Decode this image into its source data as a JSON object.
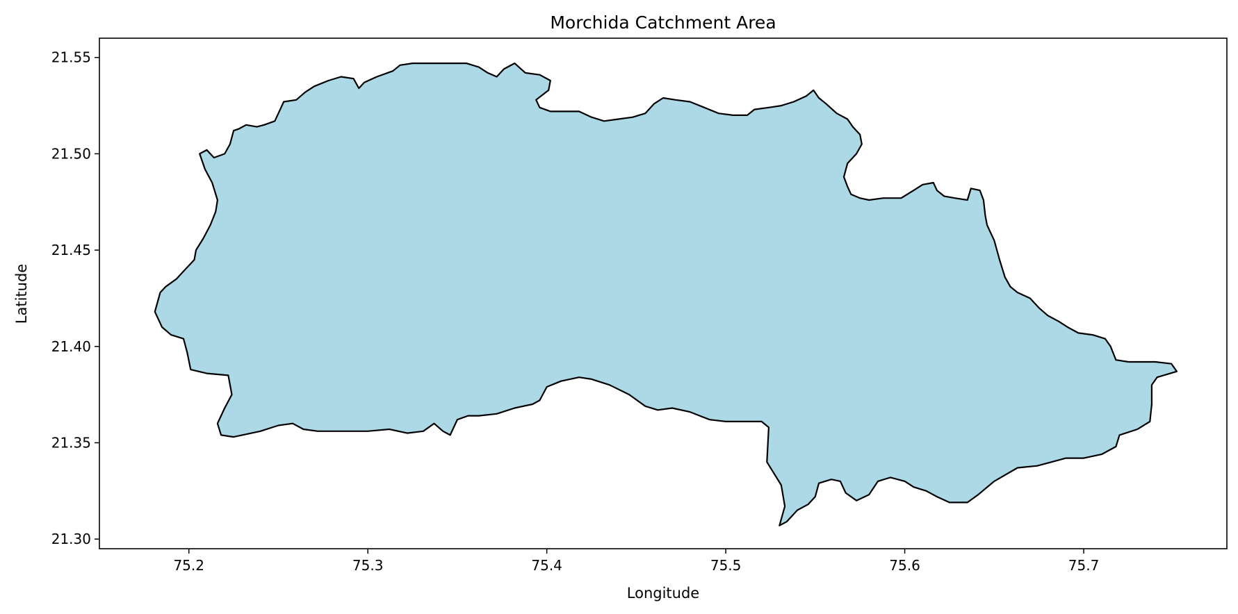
{
  "map": {
    "title": "Morchida Catchment Area",
    "xlabel": "Longitude",
    "ylabel": "Latitude",
    "x_ticks": [
      "75.2",
      "75.3",
      "75.4",
      "75.5",
      "75.6",
      "75.7"
    ],
    "y_ticks": [
      "21.30",
      "21.35",
      "21.40",
      "21.45",
      "21.50",
      "21.55"
    ],
    "x_range": [
      75.15,
      75.78
    ],
    "y_range": [
      21.295,
      21.56
    ],
    "fill_color": "#add8e6",
    "edge_color": "#000000",
    "boundary_polygon": [
      [
        75.184,
        21.428
      ],
      [
        75.181,
        21.418
      ],
      [
        75.185,
        21.41
      ],
      [
        75.19,
        21.406
      ],
      [
        75.197,
        21.404
      ],
      [
        75.199,
        21.397
      ],
      [
        75.201,
        21.388
      ],
      [
        75.21,
        21.386
      ],
      [
        75.222,
        21.385
      ],
      [
        75.224,
        21.375
      ],
      [
        75.22,
        21.368
      ],
      [
        75.216,
        21.36
      ],
      [
        75.218,
        21.354
      ],
      [
        75.225,
        21.353
      ],
      [
        75.24,
        21.356
      ],
      [
        75.25,
        21.359
      ],
      [
        75.258,
        21.36
      ],
      [
        75.264,
        21.357
      ],
      [
        75.272,
        21.356
      ],
      [
        75.285,
        21.356
      ],
      [
        75.3,
        21.356
      ],
      [
        75.312,
        21.357
      ],
      [
        75.322,
        21.355
      ],
      [
        75.331,
        21.356
      ],
      [
        75.337,
        21.36
      ],
      [
        75.342,
        21.356
      ],
      [
        75.346,
        21.354
      ],
      [
        75.35,
        21.362
      ],
      [
        75.356,
        21.364
      ],
      [
        75.362,
        21.364
      ],
      [
        75.372,
        21.365
      ],
      [
        75.382,
        21.368
      ],
      [
        75.392,
        21.37
      ],
      [
        75.396,
        21.372
      ],
      [
        75.4,
        21.379
      ],
      [
        75.408,
        21.382
      ],
      [
        75.418,
        21.384
      ],
      [
        75.425,
        21.383
      ],
      [
        75.435,
        21.38
      ],
      [
        75.446,
        21.375
      ],
      [
        75.455,
        21.369
      ],
      [
        75.462,
        21.367
      ],
      [
        75.47,
        21.368
      ],
      [
        75.48,
        21.366
      ],
      [
        75.491,
        21.362
      ],
      [
        75.5,
        21.361
      ],
      [
        75.512,
        21.361
      ],
      [
        75.52,
        21.361
      ],
      [
        75.524,
        21.358
      ],
      [
        75.523,
        21.34
      ],
      [
        75.527,
        21.334
      ],
      [
        75.531,
        21.328
      ],
      [
        75.533,
        21.317
      ],
      [
        75.53,
        21.307
      ],
      [
        75.534,
        21.309
      ],
      [
        75.54,
        21.315
      ],
      [
        75.546,
        21.318
      ],
      [
        75.55,
        21.322
      ],
      [
        75.552,
        21.329
      ],
      [
        75.559,
        21.331
      ],
      [
        75.564,
        21.33
      ],
      [
        75.567,
        21.324
      ],
      [
        75.573,
        21.32
      ],
      [
        75.58,
        21.323
      ],
      [
        75.585,
        21.33
      ],
      [
        75.592,
        21.332
      ],
      [
        75.6,
        21.33
      ],
      [
        75.605,
        21.327
      ],
      [
        75.612,
        21.325
      ],
      [
        75.618,
        21.322
      ],
      [
        75.625,
        21.319
      ],
      [
        75.635,
        21.319
      ],
      [
        75.641,
        21.323
      ],
      [
        75.65,
        21.33
      ],
      [
        75.663,
        21.337
      ],
      [
        75.674,
        21.338
      ],
      [
        75.682,
        21.34
      ],
      [
        75.69,
        21.342
      ],
      [
        75.7,
        21.342
      ],
      [
        75.71,
        21.344
      ],
      [
        75.718,
        21.348
      ],
      [
        75.72,
        21.354
      ],
      [
        75.73,
        21.357
      ],
      [
        75.737,
        21.361
      ],
      [
        75.738,
        21.37
      ],
      [
        75.738,
        21.38
      ],
      [
        75.741,
        21.384
      ],
      [
        75.752,
        21.387
      ],
      [
        75.749,
        21.391
      ],
      [
        75.74,
        21.392
      ],
      [
        75.725,
        21.392
      ],
      [
        75.718,
        21.393
      ],
      [
        75.715,
        21.4
      ],
      [
        75.712,
        21.404
      ],
      [
        75.705,
        21.406
      ],
      [
        75.697,
        21.407
      ],
      [
        75.691,
        21.41
      ],
      [
        75.686,
        21.413
      ],
      [
        75.68,
        21.416
      ],
      [
        75.675,
        21.42
      ],
      [
        75.67,
        21.425
      ],
      [
        75.663,
        21.428
      ],
      [
        75.659,
        21.431
      ],
      [
        75.656,
        21.436
      ],
      [
        75.653,
        21.445
      ],
      [
        75.65,
        21.455
      ],
      [
        75.646,
        21.463
      ],
      [
        75.645,
        21.468
      ],
      [
        75.644,
        21.476
      ],
      [
        75.642,
        21.481
      ],
      [
        75.637,
        21.482
      ],
      [
        75.635,
        21.476
      ],
      [
        75.628,
        21.477
      ],
      [
        75.622,
        21.478
      ],
      [
        75.618,
        21.481
      ],
      [
        75.616,
        21.485
      ],
      [
        75.61,
        21.484
      ],
      [
        75.605,
        21.481
      ],
      [
        75.598,
        21.477
      ],
      [
        75.588,
        21.477
      ],
      [
        75.58,
        21.476
      ],
      [
        75.575,
        21.477
      ],
      [
        75.57,
        21.479
      ],
      [
        75.568,
        21.483
      ],
      [
        75.566,
        21.488
      ],
      [
        75.568,
        21.495
      ],
      [
        75.573,
        21.5
      ],
      [
        75.576,
        21.505
      ],
      [
        75.575,
        21.51
      ],
      [
        75.571,
        21.514
      ],
      [
        75.568,
        21.518
      ],
      [
        75.562,
        21.521
      ],
      [
        75.556,
        21.526
      ],
      [
        75.552,
        21.529
      ],
      [
        75.549,
        21.533
      ],
      [
        75.545,
        21.53
      ],
      [
        75.538,
        21.527
      ],
      [
        75.531,
        21.525
      ],
      [
        75.524,
        21.524
      ],
      [
        75.516,
        21.523
      ],
      [
        75.512,
        21.52
      ],
      [
        75.504,
        21.52
      ],
      [
        75.496,
        21.521
      ],
      [
        75.488,
        21.524
      ],
      [
        75.48,
        21.527
      ],
      [
        75.472,
        21.528
      ],
      [
        75.465,
        21.529
      ],
      [
        75.46,
        21.526
      ],
      [
        75.455,
        21.521
      ],
      [
        75.448,
        21.519
      ],
      [
        75.44,
        21.518
      ],
      [
        75.432,
        21.517
      ],
      [
        75.425,
        21.519
      ],
      [
        75.418,
        21.522
      ],
      [
        75.41,
        21.522
      ],
      [
        75.402,
        21.522
      ],
      [
        75.396,
        21.524
      ],
      [
        75.394,
        21.528
      ],
      [
        75.401,
        21.533
      ],
      [
        75.402,
        21.538
      ],
      [
        75.396,
        21.541
      ],
      [
        75.388,
        21.542
      ],
      [
        75.382,
        21.547
      ],
      [
        75.376,
        21.544
      ],
      [
        75.372,
        21.54
      ],
      [
        75.367,
        21.542
      ],
      [
        75.362,
        21.545
      ],
      [
        75.355,
        21.547
      ],
      [
        75.345,
        21.547
      ],
      [
        75.335,
        21.547
      ],
      [
        75.325,
        21.547
      ],
      [
        75.318,
        21.546
      ],
      [
        75.314,
        21.543
      ],
      [
        75.305,
        21.54
      ],
      [
        75.298,
        21.537
      ],
      [
        75.295,
        21.534
      ],
      [
        75.292,
        21.539
      ],
      [
        75.285,
        21.54
      ],
      [
        75.278,
        21.538
      ],
      [
        75.27,
        21.535
      ],
      [
        75.265,
        21.532
      ],
      [
        75.26,
        21.528
      ],
      [
        75.253,
        21.527
      ],
      [
        75.25,
        21.521
      ],
      [
        75.248,
        21.517
      ],
      [
        75.242,
        21.515
      ],
      [
        75.238,
        21.514
      ],
      [
        75.232,
        21.515
      ],
      [
        75.228,
        21.513
      ],
      [
        75.225,
        21.512
      ],
      [
        75.223,
        21.505
      ],
      [
        75.22,
        21.5
      ],
      [
        75.214,
        21.498
      ],
      [
        75.21,
        21.502
      ],
      [
        75.206,
        21.5
      ],
      [
        75.209,
        21.492
      ],
      [
        75.213,
        21.485
      ],
      [
        75.216,
        21.476
      ],
      [
        75.215,
        21.47
      ],
      [
        75.212,
        21.463
      ],
      [
        75.208,
        21.456
      ],
      [
        75.204,
        21.45
      ],
      [
        75.203,
        21.445
      ],
      [
        75.198,
        21.44
      ],
      [
        75.193,
        21.435
      ],
      [
        75.187,
        21.431
      ]
    ]
  }
}
